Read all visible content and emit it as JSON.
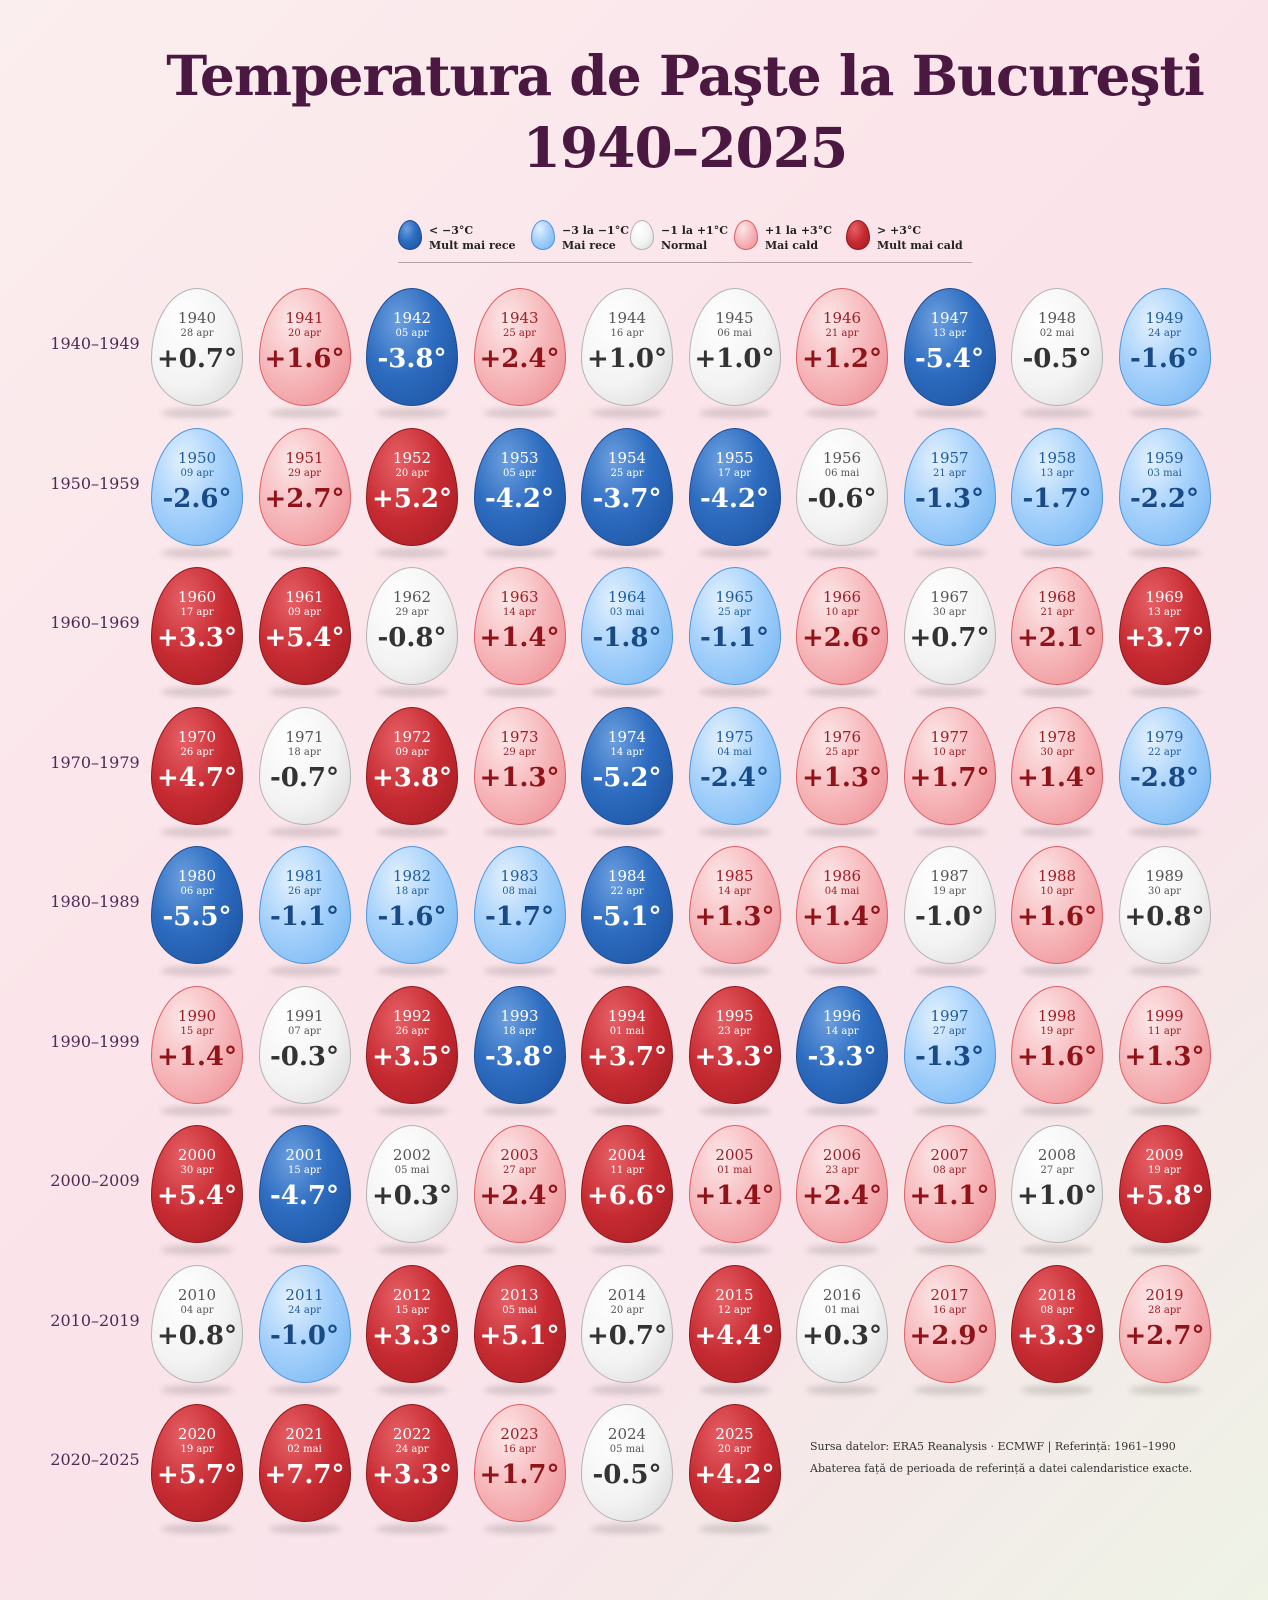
{
  "chart_data": {
    "type": "table",
    "title_line1": "Temperatura de Paşte la Bucureşti",
    "title_line2": "1940–2025",
    "legend": [
      {
        "key": "vcold",
        "range": "< −3°C",
        "label": "Mult mai rece",
        "color": "#2d6cc0"
      },
      {
        "key": "cold",
        "range": "−3 la −1°C",
        "label": "Mai rece",
        "color": "#a6d1fb"
      },
      {
        "key": "normal",
        "range": "−1 la +1°C",
        "label": "Normal",
        "color": "#f3f3f3"
      },
      {
        "key": "warm",
        "range": "+1 la +3°C",
        "label": "Mai cald",
        "color": "#f6b6b9"
      },
      {
        "key": "vwarm",
        "range": "> +3°C",
        "label": "Mult mai cald",
        "color": "#c62a31"
      }
    ],
    "decades": [
      {
        "label": "1940–1949",
        "eggs": [
          {
            "year": "1940",
            "date": "28 apr",
            "value": 0.7
          },
          {
            "year": "1941",
            "date": "20 apr",
            "value": 1.6
          },
          {
            "year": "1942",
            "date": "05 apr",
            "value": -3.8
          },
          {
            "year": "1943",
            "date": "25 apr",
            "value": 2.4
          },
          {
            "year": "1944",
            "date": "16 apr",
            "value": 1.0
          },
          {
            "year": "1945",
            "date": "06 mai",
            "value": 1.0
          },
          {
            "year": "1946",
            "date": "21 apr",
            "value": 1.2
          },
          {
            "year": "1947",
            "date": "13 apr",
            "value": -5.4
          },
          {
            "year": "1948",
            "date": "02 mai",
            "value": -0.5
          },
          {
            "year": "1949",
            "date": "24 apr",
            "value": -1.6
          }
        ]
      },
      {
        "label": "1950–1959",
        "eggs": [
          {
            "year": "1950",
            "date": "09 apr",
            "value": -2.6
          },
          {
            "year": "1951",
            "date": "29 apr",
            "value": 2.7
          },
          {
            "year": "1952",
            "date": "20 apr",
            "value": 5.2
          },
          {
            "year": "1953",
            "date": "05 apr",
            "value": -4.2
          },
          {
            "year": "1954",
            "date": "25 apr",
            "value": -3.7
          },
          {
            "year": "1955",
            "date": "17 apr",
            "value": -4.2
          },
          {
            "year": "1956",
            "date": "06 mai",
            "value": -0.6
          },
          {
            "year": "1957",
            "date": "21 apr",
            "value": -1.3
          },
          {
            "year": "1958",
            "date": "13 apr",
            "value": -1.7
          },
          {
            "year": "1959",
            "date": "03 mai",
            "value": -2.2
          }
        ]
      },
      {
        "label": "1960–1969",
        "eggs": [
          {
            "year": "1960",
            "date": "17 apr",
            "value": 3.3
          },
          {
            "year": "1961",
            "date": "09 apr",
            "value": 5.4
          },
          {
            "year": "1962",
            "date": "29 apr",
            "value": -0.8
          },
          {
            "year": "1963",
            "date": "14 apr",
            "value": 1.4
          },
          {
            "year": "1964",
            "date": "03 mai",
            "value": -1.8
          },
          {
            "year": "1965",
            "date": "25 apr",
            "value": -1.1
          },
          {
            "year": "1966",
            "date": "10 apr",
            "value": 2.6
          },
          {
            "year": "1967",
            "date": "30 apr",
            "value": 0.7
          },
          {
            "year": "1968",
            "date": "21 apr",
            "value": 2.1
          },
          {
            "year": "1969",
            "date": "13 apr",
            "value": 3.7
          }
        ]
      },
      {
        "label": "1970–1979",
        "eggs": [
          {
            "year": "1970",
            "date": "26 apr",
            "value": 4.7
          },
          {
            "year": "1971",
            "date": "18 apr",
            "value": -0.7
          },
          {
            "year": "1972",
            "date": "09 apr",
            "value": 3.8
          },
          {
            "year": "1973",
            "date": "29 apr",
            "value": 1.3
          },
          {
            "year": "1974",
            "date": "14 apr",
            "value": -5.2
          },
          {
            "year": "1975",
            "date": "04 mai",
            "value": -2.4
          },
          {
            "year": "1976",
            "date": "25 apr",
            "value": 1.3
          },
          {
            "year": "1977",
            "date": "10 apr",
            "value": 1.7
          },
          {
            "year": "1978",
            "date": "30 apr",
            "value": 1.4
          },
          {
            "year": "1979",
            "date": "22 apr",
            "value": -2.8
          }
        ]
      },
      {
        "label": "1980–1989",
        "eggs": [
          {
            "year": "1980",
            "date": "06 apr",
            "value": -5.5
          },
          {
            "year": "1981",
            "date": "26 apr",
            "value": -1.1
          },
          {
            "year": "1982",
            "date": "18 apr",
            "value": -1.6
          },
          {
            "year": "1983",
            "date": "08 mai",
            "value": -1.7
          },
          {
            "year": "1984",
            "date": "22 apr",
            "value": -5.1
          },
          {
            "year": "1985",
            "date": "14 apr",
            "value": 1.3
          },
          {
            "year": "1986",
            "date": "04 mai",
            "value": 1.4
          },
          {
            "year": "1987",
            "date": "19 apr",
            "value": -1.0
          },
          {
            "year": "1988",
            "date": "10 apr",
            "value": 1.6
          },
          {
            "year": "1989",
            "date": "30 apr",
            "value": 0.8
          }
        ]
      },
      {
        "label": "1990–1999",
        "eggs": [
          {
            "year": "1990",
            "date": "15 apr",
            "value": 1.4
          },
          {
            "year": "1991",
            "date": "07 apr",
            "value": -0.3
          },
          {
            "year": "1992",
            "date": "26 apr",
            "value": 3.5
          },
          {
            "year": "1993",
            "date": "18 apr",
            "value": -3.8
          },
          {
            "year": "1994",
            "date": "01 mai",
            "value": 3.7
          },
          {
            "year": "1995",
            "date": "23 apr",
            "value": 3.3
          },
          {
            "year": "1996",
            "date": "14 apr",
            "value": -3.3
          },
          {
            "year": "1997",
            "date": "27 apr",
            "value": -1.3
          },
          {
            "year": "1998",
            "date": "19 apr",
            "value": 1.6
          },
          {
            "year": "1999",
            "date": "11 apr",
            "value": 1.3
          }
        ]
      },
      {
        "label": "2000–2009",
        "eggs": [
          {
            "year": "2000",
            "date": "30 apr",
            "value": 5.4
          },
          {
            "year": "2001",
            "date": "15 apr",
            "value": -4.7
          },
          {
            "year": "2002",
            "date": "05 mai",
            "value": 0.3
          },
          {
            "year": "2003",
            "date": "27 apr",
            "value": 2.4
          },
          {
            "year": "2004",
            "date": "11 apr",
            "value": 6.6
          },
          {
            "year": "2005",
            "date": "01 mai",
            "value": 1.4
          },
          {
            "year": "2006",
            "date": "23 apr",
            "value": 2.4
          },
          {
            "year": "2007",
            "date": "08 apr",
            "value": 1.1
          },
          {
            "year": "2008",
            "date": "27 apr",
            "value": 1.0
          },
          {
            "year": "2009",
            "date": "19 apr",
            "value": 5.8
          }
        ]
      },
      {
        "label": "2010–2019",
        "eggs": [
          {
            "year": "2010",
            "date": "04 apr",
            "value": 0.8
          },
          {
            "year": "2011",
            "date": "24 apr",
            "value": -1.0
          },
          {
            "year": "2012",
            "date": "15 apr",
            "value": 3.3
          },
          {
            "year": "2013",
            "date": "05 mai",
            "value": 5.1
          },
          {
            "year": "2014",
            "date": "20 apr",
            "value": 0.7
          },
          {
            "year": "2015",
            "date": "12 apr",
            "value": 4.4
          },
          {
            "year": "2016",
            "date": "01 mai",
            "value": 0.3
          },
          {
            "year": "2017",
            "date": "16 apr",
            "value": 2.9
          },
          {
            "year": "2018",
            "date": "08 apr",
            "value": 3.3
          },
          {
            "year": "2019",
            "date": "28 apr",
            "value": 2.7
          }
        ]
      },
      {
        "label": "2020–2025",
        "eggs": [
          {
            "year": "2020",
            "date": "19 apr",
            "value": 5.7
          },
          {
            "year": "2021",
            "date": "02 mai",
            "value": 7.7
          },
          {
            "year": "2022",
            "date": "24 apr",
            "value": 3.3
          },
          {
            "year": "2023",
            "date": "16 apr",
            "value": 1.7
          },
          {
            "year": "2024",
            "date": "05 mai",
            "value": -0.5
          },
          {
            "year": "2025",
            "date": "20 apr",
            "value": 4.2
          }
        ]
      }
    ],
    "source_line1": "Sursa datelor: ERA5 Reanalysis · ECMWF  | Referință: 1961–1990",
    "source_line2": "Abaterea față de perioada de referință a datei calendaristice exacte."
  },
  "overrides": {
    "1944": "normal",
    "1945": "normal",
    "1987": "normal",
    "2008": "normal",
    "2011": "cold"
  }
}
